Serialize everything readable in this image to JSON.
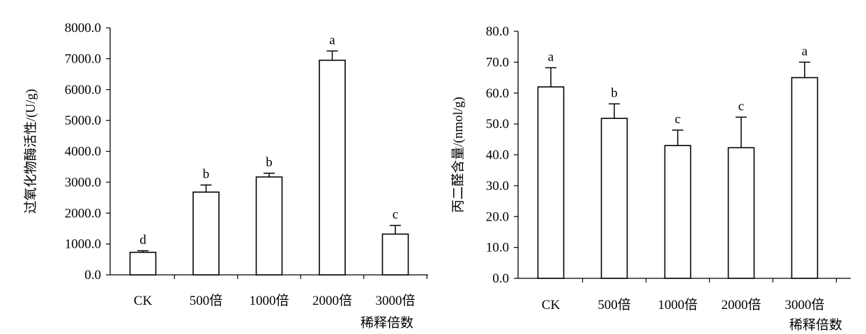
{
  "chart_data": [
    {
      "type": "bar",
      "ylabel": "过氧化物酶活性/(U/g)",
      "xlabel": "稀释倍数",
      "categories": [
        "CK",
        "500倍",
        "1000倍",
        "2000倍",
        "3000倍"
      ],
      "values": [
        730,
        2680,
        3170,
        6950,
        1320
      ],
      "errors": [
        50,
        230,
        120,
        300,
        280
      ],
      "significance": [
        "d",
        "b",
        "b",
        "a",
        "c"
      ],
      "ylim": [
        0,
        8000
      ],
      "yticks": [
        "0.0",
        "1000.0",
        "2000.0",
        "3000.0",
        "4000.0",
        "5000.0",
        "6000.0",
        "7000.0",
        "8000.0"
      ],
      "grid": false
    },
    {
      "type": "bar",
      "ylabel": "丙二醛含量/(nmol/g)",
      "xlabel": "稀释倍数",
      "categories": [
        "CK",
        "500倍",
        "1000倍",
        "2000倍",
        "3000倍"
      ],
      "values": [
        62.0,
        51.8,
        43.0,
        42.3,
        65.0
      ],
      "errors": [
        6.2,
        4.7,
        5.0,
        9.9,
        5.0
      ],
      "significance": [
        "a",
        "b",
        "c",
        "c",
        "a"
      ],
      "ylim": [
        0,
        80
      ],
      "yticks": [
        "0.0",
        "10.0",
        "20.0",
        "30.0",
        "40.0",
        "50.0",
        "60.0",
        "70.0",
        "80.0"
      ],
      "grid": false
    }
  ]
}
